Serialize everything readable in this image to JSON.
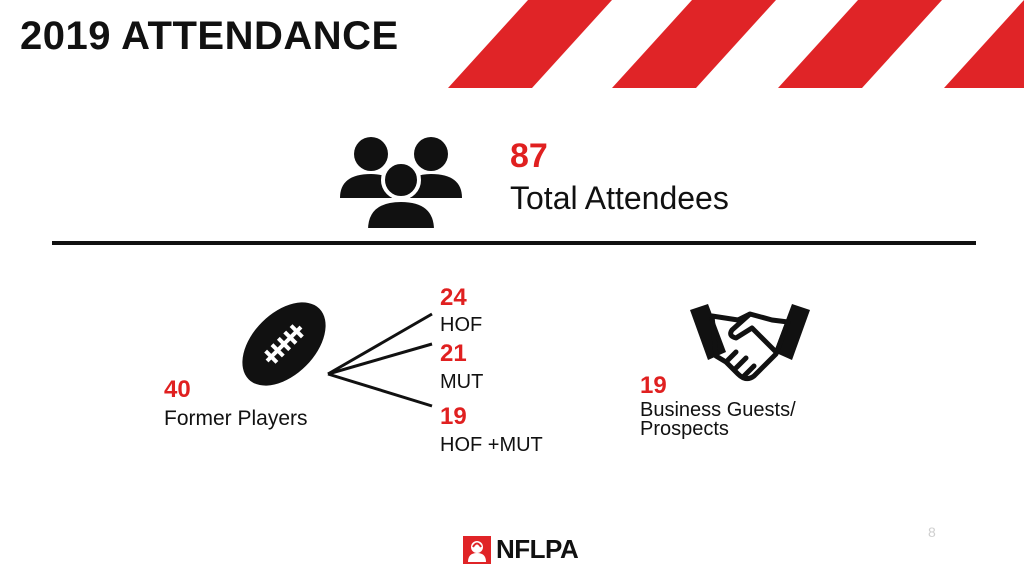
{
  "title": "2019 ATTENDANCE",
  "colors": {
    "accent": "#e02020",
    "text": "#111111",
    "stripe": "#e02427"
  },
  "total": {
    "value": "87",
    "label": "Total Attendees",
    "icon": "group-people-icon"
  },
  "players": {
    "value": "40",
    "label": "Former Players",
    "icon": "football-icon",
    "breakdown": [
      {
        "value": "24",
        "label": "HOF"
      },
      {
        "value": "21",
        "label": "MUT"
      },
      {
        "value": "19",
        "label": "HOF +MUT"
      }
    ]
  },
  "guests": {
    "value": "19",
    "label_line1": "Business Guests/",
    "label_line2": "Prospects",
    "icon": "handshake-icon"
  },
  "footer": {
    "page_number": "8",
    "logo_text": "NFLPA",
    "logo_icon": "nflpa-shield-icon"
  }
}
